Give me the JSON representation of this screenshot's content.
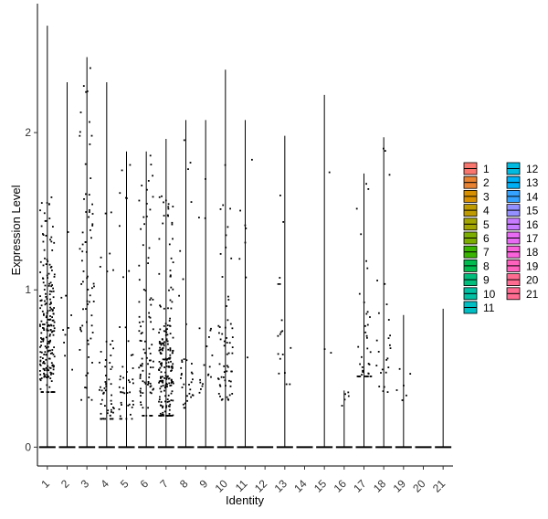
{
  "chart_data": {
    "type": "violin",
    "xlabel": "Identity",
    "ylabel": "Expression Level",
    "categories": [
      "1",
      "2",
      "3",
      "4",
      "5",
      "6",
      "7",
      "8",
      "9",
      "10",
      "11",
      "12",
      "13",
      "14",
      "15",
      "16",
      "17",
      "18",
      "19",
      "20",
      "21"
    ],
    "ylim": [
      -0.12,
      2.82
    ],
    "yticks": [
      0,
      1,
      2
    ],
    "grid": false,
    "legend_position": "right",
    "legend_columns": 2,
    "point_color": "#000000",
    "zero_line_color": "#000000",
    "colors": [
      "#F8766D",
      "#EA8331",
      "#D89000",
      "#C09B00",
      "#A3A500",
      "#7CAE00",
      "#39B600",
      "#00BB4E",
      "#00BF7D",
      "#00C1A3",
      "#00BFC4",
      "#00BAE0",
      "#00B0F6",
      "#35A2FF",
      "#9590FF",
      "#C77CFF",
      "#E76BF3",
      "#FA62DB",
      "#FF62BC",
      "#FF6C91",
      "#FF6C91"
    ],
    "series": [
      {
        "name": "1",
        "max": 2.68,
        "n": 220,
        "low": 0.35,
        "high": 1.6,
        "center": 0.7
      },
      {
        "name": "2",
        "max": 2.32,
        "n": 10,
        "low": 0.2,
        "high": 2.3,
        "center": 0.6
      },
      {
        "name": "3",
        "max": 2.48,
        "n": 70,
        "low": 0.3,
        "high": 2.48,
        "center": 1.2
      },
      {
        "name": "4",
        "max": 2.32,
        "n": 60,
        "low": 0.18,
        "high": 1.5,
        "center": 0.3
      },
      {
        "name": "5",
        "max": 1.88,
        "n": 45,
        "low": 0.18,
        "high": 1.85,
        "center": 0.35
      },
      {
        "name": "6",
        "max": 1.88,
        "n": 95,
        "low": 0.2,
        "high": 1.88,
        "center": 0.5
      },
      {
        "name": "7",
        "max": 1.96,
        "n": 210,
        "low": 0.2,
        "high": 1.6,
        "center": 0.45
      },
      {
        "name": "8",
        "max": 2.08,
        "n": 35,
        "low": 0.25,
        "high": 2.05,
        "center": 0.45
      },
      {
        "name": "9",
        "max": 2.08,
        "n": 20,
        "low": 0.3,
        "high": 2.0,
        "center": 0.5
      },
      {
        "name": "10",
        "max": 2.4,
        "n": 60,
        "low": 0.3,
        "high": 1.8,
        "center": 0.5
      },
      {
        "name": "11",
        "max": 2.08,
        "n": 8,
        "low": 0.5,
        "high": 2.0,
        "center": 1.2
      },
      {
        "name": "12",
        "max": 0,
        "n": 0,
        "low": 0,
        "high": 0,
        "center": 0
      },
      {
        "name": "13",
        "max": 1.98,
        "n": 18,
        "low": 0.4,
        "high": 1.98,
        "center": 0.6
      },
      {
        "name": "14",
        "max": 0,
        "n": 0,
        "low": 0,
        "high": 0,
        "center": 0
      },
      {
        "name": "15",
        "max": 2.24,
        "n": 3,
        "low": 0.6,
        "high": 2.24,
        "center": 0.9
      },
      {
        "name": "16",
        "max": 0.36,
        "n": 5,
        "low": 0.22,
        "high": 0.36,
        "center": 0.3
      },
      {
        "name": "17",
        "max": 1.74,
        "n": 40,
        "low": 0.45,
        "high": 1.74,
        "center": 0.6
      },
      {
        "name": "18",
        "max": 1.97,
        "n": 25,
        "low": 0.35,
        "high": 1.97,
        "center": 0.6
      },
      {
        "name": "19",
        "max": 0.84,
        "n": 6,
        "low": 0.25,
        "high": 0.84,
        "center": 0.4
      },
      {
        "name": "20",
        "max": 0,
        "n": 0,
        "low": 0,
        "high": 0,
        "center": 0
      },
      {
        "name": "21",
        "max": 0.88,
        "n": 0,
        "low": 0,
        "high": 0,
        "center": 0
      }
    ]
  }
}
